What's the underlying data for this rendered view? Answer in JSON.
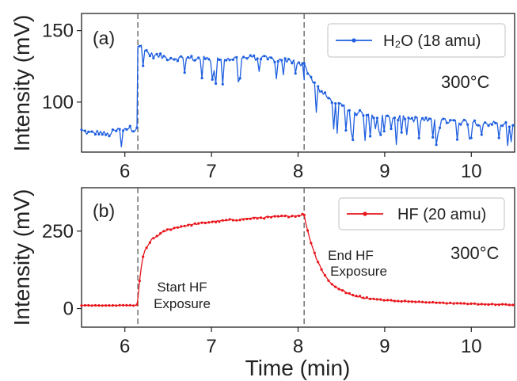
{
  "chart_data": [
    {
      "type": "line",
      "panel_label": "(a)",
      "ylabel": "Intensity (mV)",
      "xlim": [
        5.5,
        10.5
      ],
      "ylim": [
        65,
        162
      ],
      "xticks": [
        6,
        7,
        8,
        9,
        10
      ],
      "yticks": [
        100,
        150
      ],
      "vlines": [
        6.15,
        8.07
      ],
      "annotations": [
        {
          "text": "300°C",
          "x": 10.2,
          "y": 112
        }
      ],
      "series": [
        {
          "name": "H₂O (18 amu)",
          "color": "#1f5fe0",
          "segments": [
            {
              "x": [
                5.5,
                5.6,
                5.7,
                5.8,
                5.9,
                6.0,
                6.1,
                6.14
              ],
              "y": [
                80,
                78,
                79,
                77,
                80,
                82,
                81,
                83
              ]
            },
            {
              "x": [
                6.15,
                6.2,
                6.3,
                6.5,
                7.0,
                7.5,
                8.0,
                8.07
              ],
              "y": [
                140,
                138,
                133,
                131,
                130,
                131,
                128,
                126
              ]
            },
            {
              "x": [
                8.07,
                8.15,
                8.25,
                8.4,
                8.6,
                8.8,
                9.0,
                9.5,
                10.0,
                10.5
              ],
              "y": [
                126,
                117,
                108,
                100,
                94,
                91,
                90,
                87,
                86,
                84
              ]
            }
          ],
          "noise": 5
        }
      ]
    },
    {
      "type": "line",
      "panel_label": "(b)",
      "ylabel": "Intensity (mV)",
      "xlabel": "Time (min)",
      "xlim": [
        5.5,
        10.5
      ],
      "ylim": [
        -60,
        390
      ],
      "xticks": [
        6,
        7,
        8,
        9,
        10
      ],
      "yticks": [
        0,
        250
      ],
      "vlines": [
        6.15,
        8.07
      ],
      "annotations": [
        {
          "text": "300°C",
          "x": 10.15,
          "y": 300
        },
        {
          "lines": [
            "Start HF",
            "Exposure"
          ],
          "x": 6.65,
          "y": 103
        },
        {
          "lines": [
            "End HF",
            "Exposure"
          ],
          "x": 8.6,
          "y": 235
        }
      ],
      "series": [
        {
          "name": "HF (20 amu)",
          "color": "#e8141a",
          "segments": [
            {
              "x": [
                5.5,
                6.0,
                6.14
              ],
              "y": [
                10,
                10,
                10
              ]
            },
            {
              "x": [
                6.15,
                6.18,
                6.22,
                6.3,
                6.4,
                6.5,
                6.7,
                7.0,
                7.5,
                8.0,
                8.07
              ],
              "y": [
                30,
                120,
                180,
                220,
                240,
                255,
                268,
                280,
                292,
                300,
                305
              ]
            },
            {
              "x": [
                8.07,
                8.12,
                8.2,
                8.3,
                8.4,
                8.6,
                8.8,
                9.0,
                9.5,
                10.0,
                10.5
              ],
              "y": [
                300,
                240,
                170,
                110,
                75,
                45,
                33,
                27,
                20,
                15,
                12
              ]
            }
          ],
          "noise": 7
        }
      ]
    }
  ],
  "ticks": {
    "a_y": [
      "100",
      "150"
    ],
    "b_y": [
      "0",
      "250"
    ],
    "b_x": [
      "6",
      "7",
      "8",
      "9",
      "10"
    ],
    "a_x": [
      "6",
      "7",
      "8",
      "9",
      "10"
    ]
  },
  "text": {
    "a_panel": "(a)",
    "b_panel": "(b)",
    "a_ylabel": "Intensity (mV)",
    "b_ylabel": "Intensity (mV)",
    "xlabel": "Time (min)",
    "a_legend": "H₂O (18 amu)",
    "b_legend": "HF (20 amu)",
    "a_temp": "300°C",
    "b_temp": "300°C",
    "start_1": "Start HF",
    "start_2": "Exposure",
    "end_1": "End HF",
    "end_2": "Exposure"
  }
}
